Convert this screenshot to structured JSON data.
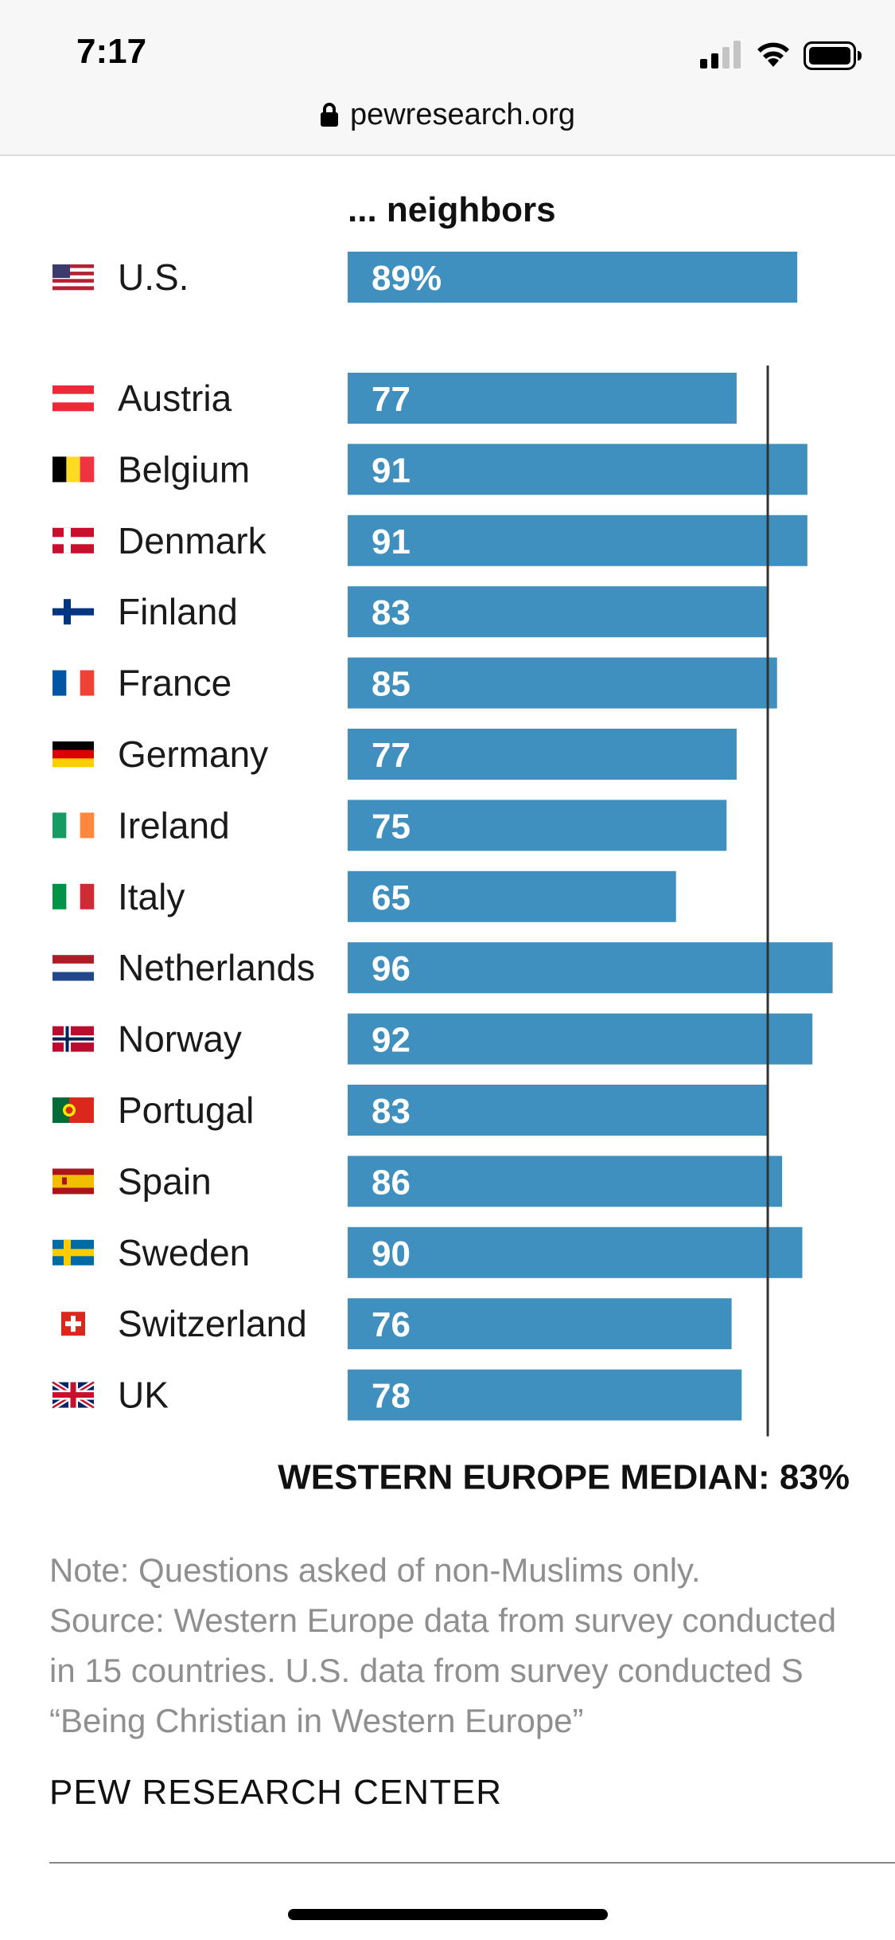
{
  "status_bar": {
    "time": "7:17",
    "icons": [
      "cellular-signal-icon",
      "wifi-icon",
      "battery-icon"
    ]
  },
  "url_bar": {
    "lock_icon": "lock-icon",
    "url": "pewresearch.org"
  },
  "chart_data": {
    "type": "bar",
    "orientation": "horizontal",
    "column_header": "... neighbors",
    "bar_color": "#3f8fbf",
    "us": {
      "category": "U.S.",
      "value": 89,
      "label": "89%",
      "flag_icon": "us-flag-icon"
    },
    "categories": [
      "Austria",
      "Belgium",
      "Denmark",
      "Finland",
      "France",
      "Germany",
      "Ireland",
      "Italy",
      "Netherlands",
      "Norway",
      "Portugal",
      "Spain",
      "Sweden",
      "Switzerland",
      "UK"
    ],
    "values": [
      77,
      91,
      91,
      83,
      85,
      77,
      75,
      65,
      96,
      92,
      83,
      86,
      90,
      76,
      78
    ],
    "flag_icons": [
      "austria-flag-icon",
      "belgium-flag-icon",
      "denmark-flag-icon",
      "finland-flag-icon",
      "france-flag-icon",
      "germany-flag-icon",
      "ireland-flag-icon",
      "italy-flag-icon",
      "netherlands-flag-icon",
      "norway-flag-icon",
      "portugal-flag-icon",
      "spain-flag-icon",
      "sweden-flag-icon",
      "switzerland-flag-icon",
      "uk-flag-icon"
    ],
    "median": {
      "value": 83,
      "label": "WESTERN EUROPE MEDIAN: 83%",
      "line_color": "#333333"
    },
    "xlim": [
      0,
      100
    ]
  },
  "notes": {
    "lines": [
      "Note: Questions asked of non-Muslims only.",
      "Source: Western Europe data from survey conducted",
      "in 15 countries. U.S. data from survey conducted S",
      "“Being Christian in Western Europe”"
    ]
  },
  "footer": {
    "org": "PEW RESEARCH CENTER"
  }
}
